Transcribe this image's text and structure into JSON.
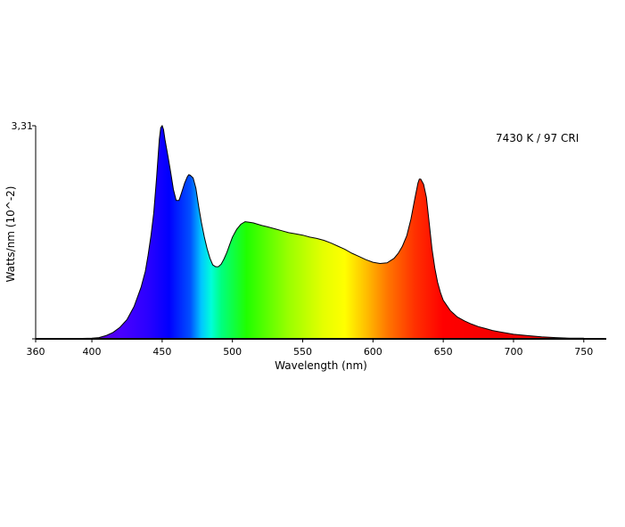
{
  "chart_data": {
    "type": "area",
    "title": "",
    "annotation": "7430 K / 97 CRI",
    "xlabel": "Wavelength (nm)",
    "ylabel": "Watts/nm (10^-2)",
    "xlim": [
      360,
      766
    ],
    "ylim": [
      0,
      3.31
    ],
    "x_ticks": [
      360,
      400,
      450,
      500,
      550,
      600,
      650,
      700,
      750
    ],
    "y_tick_label": "3,31",
    "y_tick_value": 3.31,
    "grid": false,
    "series": [
      {
        "x": [
          360,
          380,
          400,
          405,
          410,
          415,
          420,
          425,
          430,
          435,
          438,
          440,
          442,
          444,
          446,
          448,
          449,
          450,
          451,
          452,
          454,
          456,
          458,
          460,
          462,
          464,
          466,
          468,
          469,
          470,
          472,
          474,
          476,
          478,
          480,
          482,
          484,
          486,
          488,
          490,
          492,
          494,
          496,
          498,
          500,
          503,
          506,
          509,
          512,
          515,
          518,
          521,
          525,
          530,
          535,
          540,
          545,
          550,
          555,
          560,
          565,
          570,
          575,
          580,
          585,
          590,
          595,
          600,
          605,
          610,
          615,
          618,
          621,
          624,
          627,
          630,
          632,
          633,
          634,
          636,
          638,
          640,
          642,
          644,
          646,
          648,
          650,
          655,
          660,
          665,
          670,
          675,
          680,
          685,
          690,
          700,
          710,
          720,
          730,
          740,
          750
        ],
        "y": [
          0,
          0,
          0.01,
          0.02,
          0.05,
          0.1,
          0.18,
          0.3,
          0.5,
          0.8,
          1.05,
          1.3,
          1.6,
          1.95,
          2.5,
          3.1,
          3.28,
          3.31,
          3.25,
          3.1,
          2.85,
          2.6,
          2.32,
          2.15,
          2.15,
          2.28,
          2.42,
          2.52,
          2.55,
          2.54,
          2.5,
          2.34,
          2.05,
          1.8,
          1.58,
          1.4,
          1.25,
          1.15,
          1.12,
          1.12,
          1.16,
          1.24,
          1.34,
          1.46,
          1.58,
          1.7,
          1.78,
          1.82,
          1.81,
          1.8,
          1.78,
          1.76,
          1.74,
          1.71,
          1.68,
          1.65,
          1.63,
          1.61,
          1.58,
          1.56,
          1.53,
          1.49,
          1.44,
          1.39,
          1.33,
          1.28,
          1.23,
          1.19,
          1.17,
          1.18,
          1.25,
          1.33,
          1.44,
          1.6,
          1.86,
          2.2,
          2.42,
          2.48,
          2.48,
          2.4,
          2.2,
          1.8,
          1.4,
          1.1,
          0.88,
          0.72,
          0.6,
          0.44,
          0.34,
          0.28,
          0.23,
          0.19,
          0.16,
          0.13,
          0.11,
          0.07,
          0.05,
          0.03,
          0.02,
          0.01,
          0.01
        ]
      }
    ]
  }
}
